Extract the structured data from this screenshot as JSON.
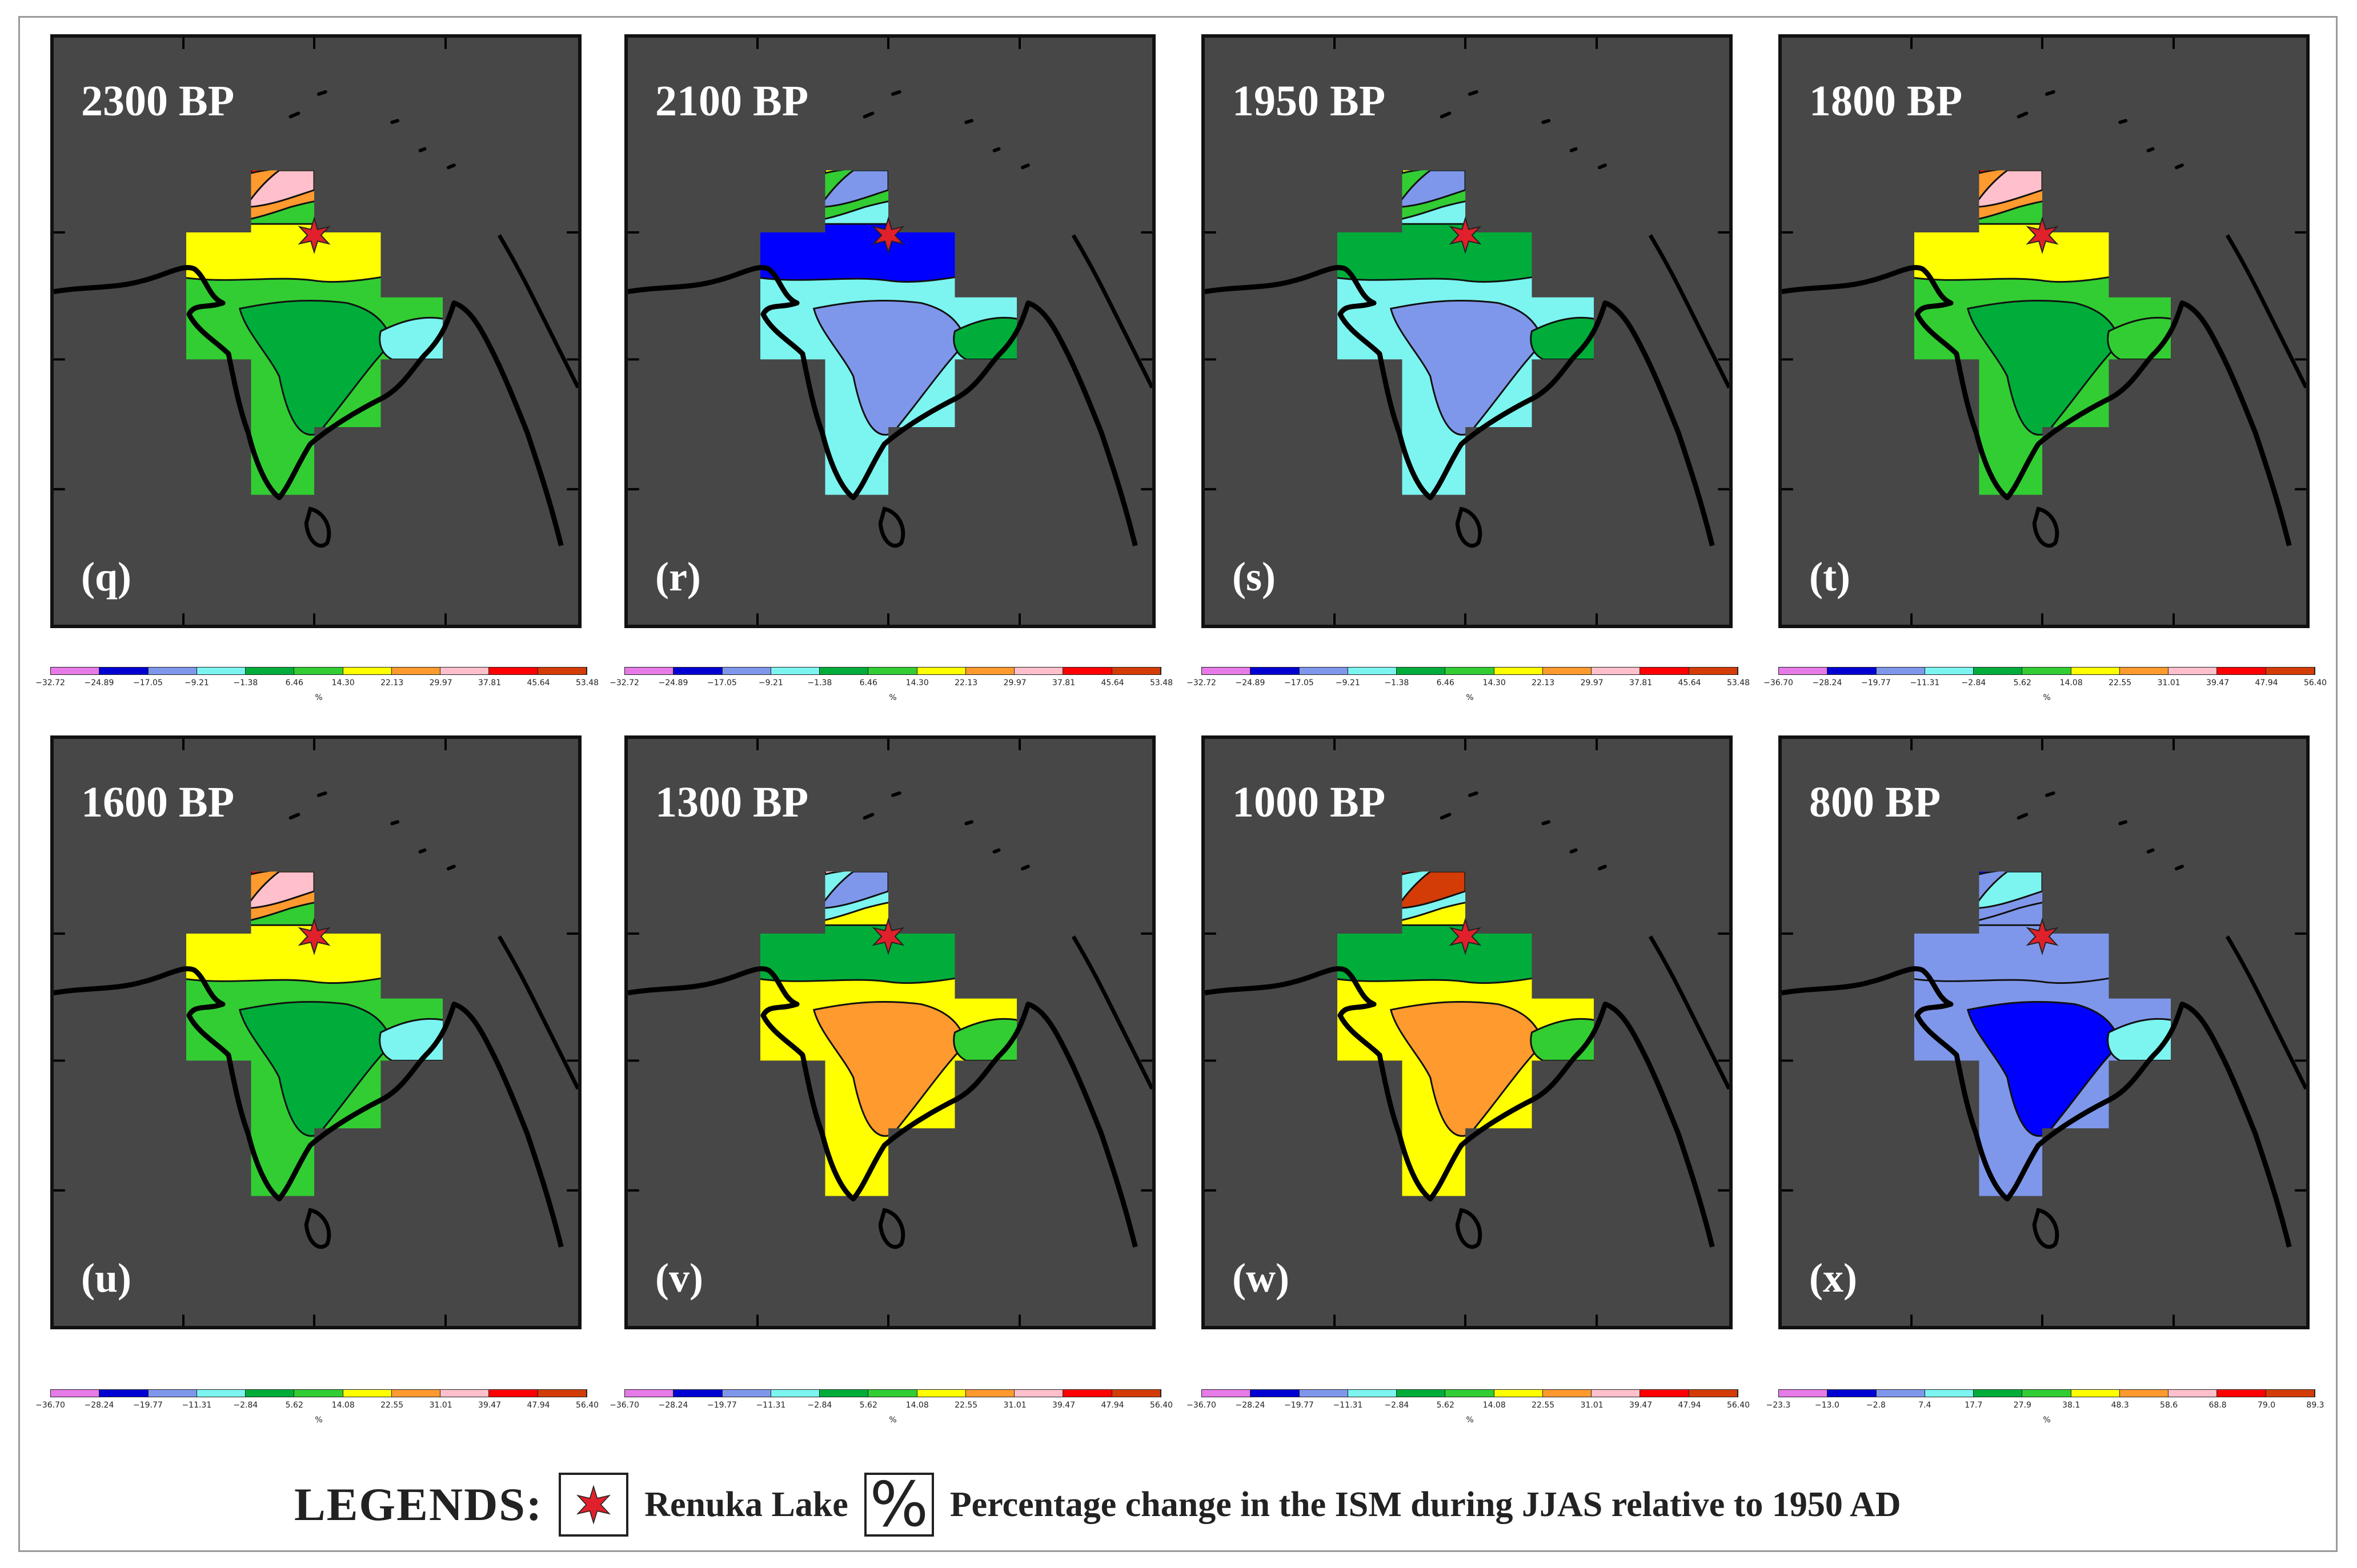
{
  "figure": {
    "panels": [
      {
        "era": "2300 BP",
        "label": "(q)",
        "colorbar": "A",
        "palette": [
          "#32cd32",
          "#00ad3a",
          "#7cf4f0",
          "#ffff00",
          "#ff9a2e",
          "#ff0000",
          "#ffc0cb"
        ]
      },
      {
        "era": "2100 BP",
        "label": "(r)",
        "colorbar": "A",
        "palette": [
          "#7cf4f0",
          "#7f97ea",
          "#00ad3a",
          "#0000ff",
          "#32cd32",
          "#ffff00",
          "#7f97ea"
        ]
      },
      {
        "era": "1950 BP",
        "label": "(s)",
        "colorbar": "A",
        "palette": [
          "#7cf4f0",
          "#7f97ea",
          "#00ad3a",
          "#00ad3a",
          "#32cd32",
          "#ffff00",
          "#7f97ea"
        ]
      },
      {
        "era": "1800 BP",
        "label": "(t)",
        "colorbar": "B",
        "palette": [
          "#32cd32",
          "#00ad3a",
          "#32cd32",
          "#ffff00",
          "#ff9a2e",
          "#ff0000",
          "#ffc0cb"
        ]
      },
      {
        "era": "1600 BP",
        "label": "(u)",
        "colorbar": "B",
        "palette": [
          "#32cd32",
          "#00ad3a",
          "#7cf4f0",
          "#ffff00",
          "#ff9a2e",
          "#ff0000",
          "#ffc0cb"
        ]
      },
      {
        "era": "1300 BP",
        "label": "(v)",
        "colorbar": "B",
        "palette": [
          "#ffff00",
          "#ff9a2e",
          "#32cd32",
          "#00ad3a",
          "#7cf4f0",
          "#ffc0cb",
          "#7f97ea"
        ]
      },
      {
        "era": "1000 BP",
        "label": "(w)",
        "colorbar": "B",
        "palette": [
          "#ffff00",
          "#ff9a2e",
          "#32cd32",
          "#00ad3a",
          "#7cf4f0",
          "#ff0000",
          "#d33c06"
        ]
      },
      {
        "era": "800 BP",
        "label": "(x)",
        "colorbar": "C",
        "palette": [
          "#7f97ea",
          "#0000ff",
          "#7cf4f0",
          "#7f97ea",
          "#7f97ea",
          "#0000ff",
          "#7cf4f0"
        ]
      }
    ],
    "colorbars": {
      "A": {
        "ticks": [
          "−32.72",
          "−24.89",
          "−17.05",
          "−9.21",
          "−1.38",
          "6.46",
          "14.30",
          "22.13",
          "29.97",
          "37.81",
          "45.64",
          "53.48"
        ],
        "unit": "%"
      },
      "B": {
        "ticks": [
          "−36.70",
          "−28.24",
          "−19.77",
          "−11.31",
          "−2.84",
          "5.62",
          "14.08",
          "22.55",
          "31.01",
          "39.47",
          "47.94",
          "56.40"
        ],
        "unit": "%"
      },
      "C": {
        "ticks": [
          "−23.3",
          "−13.0",
          "−2.8",
          "7.4",
          "17.7",
          "27.9",
          "38.1",
          "48.3",
          "58.6",
          "68.8",
          "79.0",
          "89.3"
        ],
        "unit": "%"
      }
    },
    "colorbar_colors": [
      "#e67ae6",
      "#0000d2",
      "#7f97ea",
      "#7cf4f0",
      "#00ad3a",
      "#32cd32",
      "#ffff00",
      "#ff9a2e",
      "#ffc0cb",
      "#ff0000",
      "#d33c06"
    ],
    "legend": {
      "title": "LEGENDS:",
      "star_label": "Renuka Lake",
      "percent_symbol": "%",
      "percent_label": "Percentage change in the ISM during JJAS relative to 1950 AD",
      "star_color": "#e0202a"
    }
  }
}
